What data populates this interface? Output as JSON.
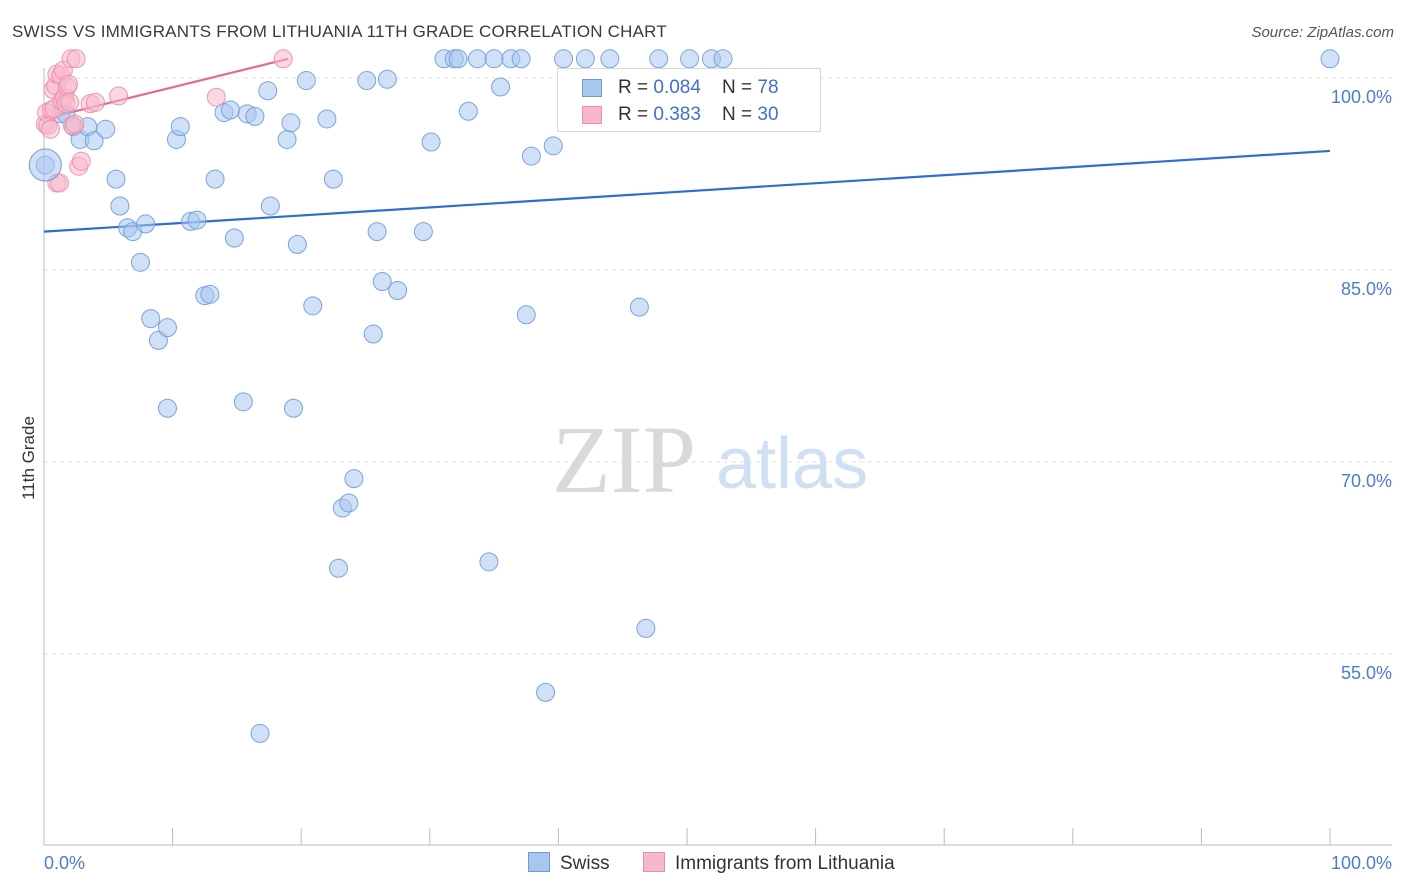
{
  "title": "SWISS VS IMMIGRANTS FROM LITHUANIA 11TH GRADE CORRELATION CHART",
  "source": "Source: ZipAtlas.com",
  "watermark": {
    "zip": "ZIP",
    "atlas": "atlas"
  },
  "colors": {
    "swiss_fill": "#a9c6ee",
    "swiss_stroke": "#6f9bdc",
    "swiss_line": "#2c6fd1",
    "lith_fill": "#f6b8cb",
    "lith_stroke": "#ee8cab",
    "lith_line": "#e4679a",
    "grid": "#e2e2e2",
    "axis_text": "#4a7ccf"
  },
  "legend": {
    "swiss": {
      "r_label": "R = ",
      "r_value": "0.084",
      "n_label": "N = ",
      "n_value": "78"
    },
    "lithuania": {
      "r_label": "R = ",
      "r_value": "0.383",
      "n_label": "N = ",
      "n_value": "30"
    }
  },
  "chart_data": {
    "type": "scatter",
    "title": "SWISS VS IMMIGRANTS FROM LITHUANIA 11TH GRADE CORRELATION CHART",
    "xlabel": "",
    "ylabel": "11th Grade",
    "xlim": [
      0,
      100
    ],
    "ylim": [
      40,
      100
    ],
    "x_tick_labels": [
      "0.0%",
      "100.0%"
    ],
    "y_ticks": [
      100,
      85,
      70,
      55
    ],
    "y_tick_labels": [
      "100.0%",
      "85.0%",
      "70.0%",
      "55.0%"
    ],
    "grid": true,
    "legend_position": "bottom",
    "series": [
      {
        "name": "Swiss",
        "trend": [
          {
            "x": 0,
            "y": 88.0
          },
          {
            "x": 100,
            "y": 94.3
          }
        ],
        "points": [
          [
            0.1,
            93.2
          ],
          [
            1.3,
            97.2
          ],
          [
            1.7,
            97.2
          ],
          [
            2.3,
            96.2
          ],
          [
            2.8,
            95.2
          ],
          [
            3.4,
            96.2
          ],
          [
            3.9,
            95.1
          ],
          [
            4.8,
            96.0
          ],
          [
            5.6,
            92.1
          ],
          [
            5.9,
            90.0
          ],
          [
            6.5,
            88.3
          ],
          [
            6.9,
            88.0
          ],
          [
            7.5,
            85.6
          ],
          [
            7.9,
            88.6
          ],
          [
            8.3,
            81.2
          ],
          [
            8.9,
            79.5
          ],
          [
            9.6,
            80.5
          ],
          [
            9.6,
            74.2
          ],
          [
            10.3,
            95.2
          ],
          [
            10.6,
            96.2
          ],
          [
            11.4,
            88.8
          ],
          [
            11.9,
            88.9
          ],
          [
            12.5,
            83.0
          ],
          [
            12.9,
            83.1
          ],
          [
            13.3,
            92.1
          ],
          [
            14.0,
            97.3
          ],
          [
            14.5,
            97.5
          ],
          [
            14.8,
            87.5
          ],
          [
            15.5,
            74.7
          ],
          [
            15.8,
            97.2
          ],
          [
            16.4,
            97.0
          ],
          [
            16.8,
            48.8
          ],
          [
            17.4,
            99.0
          ],
          [
            17.6,
            90.0
          ],
          [
            18.9,
            95.2
          ],
          [
            19.2,
            96.5
          ],
          [
            19.4,
            74.2
          ],
          [
            19.7,
            87.0
          ],
          [
            20.4,
            99.8
          ],
          [
            20.9,
            82.2
          ],
          [
            22.0,
            96.8
          ],
          [
            22.5,
            92.1
          ],
          [
            22.9,
            61.7
          ],
          [
            23.2,
            66.4
          ],
          [
            23.7,
            66.8
          ],
          [
            24.1,
            68.7
          ],
          [
            25.1,
            99.8
          ],
          [
            25.6,
            80.0
          ],
          [
            25.9,
            88.0
          ],
          [
            26.3,
            84.1
          ],
          [
            26.7,
            99.9
          ],
          [
            27.5,
            83.4
          ],
          [
            29.5,
            88.0
          ],
          [
            30.1,
            95.0
          ],
          [
            31.1,
            101.5
          ],
          [
            31.9,
            101.5
          ],
          [
            32.2,
            101.5
          ],
          [
            33.0,
            97.4
          ],
          [
            33.7,
            101.5
          ],
          [
            34.6,
            62.2
          ],
          [
            35.0,
            101.5
          ],
          [
            35.5,
            99.3
          ],
          [
            36.3,
            101.5
          ],
          [
            37.1,
            101.5
          ],
          [
            37.5,
            81.5
          ],
          [
            37.9,
            93.9
          ],
          [
            39.0,
            52.0
          ],
          [
            39.6,
            94.7
          ],
          [
            40.4,
            101.5
          ],
          [
            42.1,
            101.5
          ],
          [
            44.0,
            101.5
          ],
          [
            46.3,
            82.1
          ],
          [
            46.8,
            57.0
          ],
          [
            47.8,
            101.5
          ],
          [
            50.2,
            101.5
          ],
          [
            51.9,
            101.5
          ],
          [
            52.8,
            101.5
          ],
          [
            100.0,
            101.5
          ]
        ]
      },
      {
        "name": "Immigrants from Lithuania",
        "trend": [
          {
            "x": 0,
            "y": 96.8
          },
          {
            "x": 19,
            "y": 101.5
          }
        ],
        "points": [
          [
            0.1,
            96.4
          ],
          [
            0.2,
            97.3
          ],
          [
            0.3,
            96.3
          ],
          [
            0.5,
            96.0
          ],
          [
            0.6,
            97.5
          ],
          [
            0.7,
            99.1
          ],
          [
            0.8,
            97.6
          ],
          [
            0.9,
            99.4
          ],
          [
            1.0,
            100.3
          ],
          [
            1.0,
            91.8
          ],
          [
            1.2,
            91.8
          ],
          [
            1.3,
            100.2
          ],
          [
            1.4,
            98.2
          ],
          [
            1.5,
            100.6
          ],
          [
            1.6,
            98.5
          ],
          [
            1.7,
            98.0
          ],
          [
            1.8,
            99.3
          ],
          [
            1.9,
            99.5
          ],
          [
            2.0,
            98.1
          ],
          [
            2.1,
            101.5
          ],
          [
            2.2,
            96.3
          ],
          [
            2.4,
            96.4
          ],
          [
            2.5,
            101.5
          ],
          [
            2.7,
            93.1
          ],
          [
            2.9,
            93.5
          ],
          [
            3.6,
            98.0
          ],
          [
            4.0,
            98.1
          ],
          [
            5.8,
            98.6
          ],
          [
            13.4,
            98.5
          ],
          [
            18.6,
            101.5
          ]
        ]
      }
    ]
  }
}
